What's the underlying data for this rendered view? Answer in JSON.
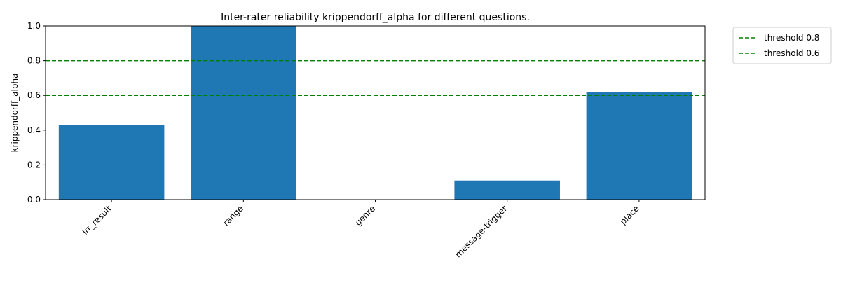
{
  "chart_data": {
    "type": "bar",
    "title": "Inter-rater reliability krippendorff_alpha for different questions.",
    "xlabel": "",
    "ylabel": "krippendorff_alpha",
    "categories": [
      "irr_result",
      "range",
      "genre",
      "message-trigger",
      "place"
    ],
    "values": [
      0.43,
      1.0,
      0.0,
      0.11,
      0.62
    ],
    "ylim": [
      0,
      1
    ],
    "yticks": [
      "0.0",
      "0.2",
      "0.4",
      "0.6",
      "0.8",
      "1.0"
    ],
    "bar_color": "#1f77b4",
    "grid": false,
    "thresholds": [
      {
        "value": 0.8,
        "label": "threshold 0.8",
        "color": "#008000",
        "style": "dashed"
      },
      {
        "value": 0.6,
        "label": "threshold 0.6",
        "color": "#008000",
        "style": "dashed"
      }
    ],
    "legend_placement": "outside-top-right"
  }
}
